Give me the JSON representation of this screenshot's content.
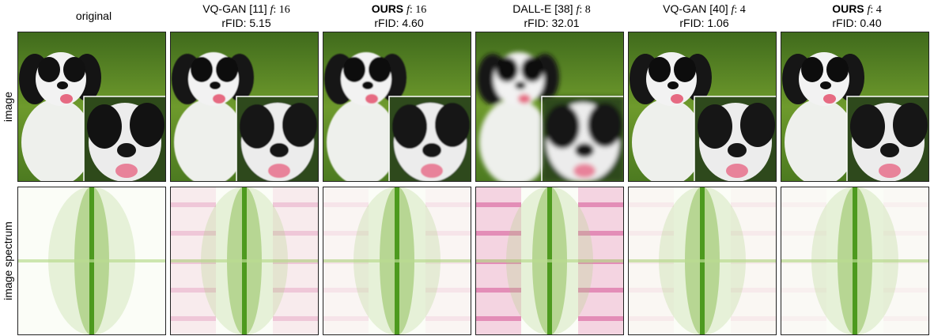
{
  "row_labels": [
    "image",
    "image spectrum"
  ],
  "columns": [
    {
      "method": "original",
      "bold": false
    },
    {
      "method": "VQ-GAN [11]",
      "bold": false,
      "factor_symbol": "f",
      "factor_ratio": ": 16",
      "metric": "rFID: 5.15"
    },
    {
      "method": "OURS",
      "bold": true,
      "factor_symbol": "f",
      "factor_ratio": ": 16",
      "metric": "rFID: 4.60"
    },
    {
      "method": "DALL-E [38]",
      "bold": false,
      "factor_symbol": "f",
      "factor_ratio": ": 8",
      "metric": "rFID: 32.01"
    },
    {
      "method": "VQ-GAN [40]",
      "bold": false,
      "factor_symbol": "f",
      "factor_ratio": ": 4",
      "metric": "rFID: 1.06"
    },
    {
      "method": "OURS",
      "bold": true,
      "factor_symbol": "f",
      "factor_ratio": ": 4",
      "metric": "rFID: 0.40"
    }
  ]
}
